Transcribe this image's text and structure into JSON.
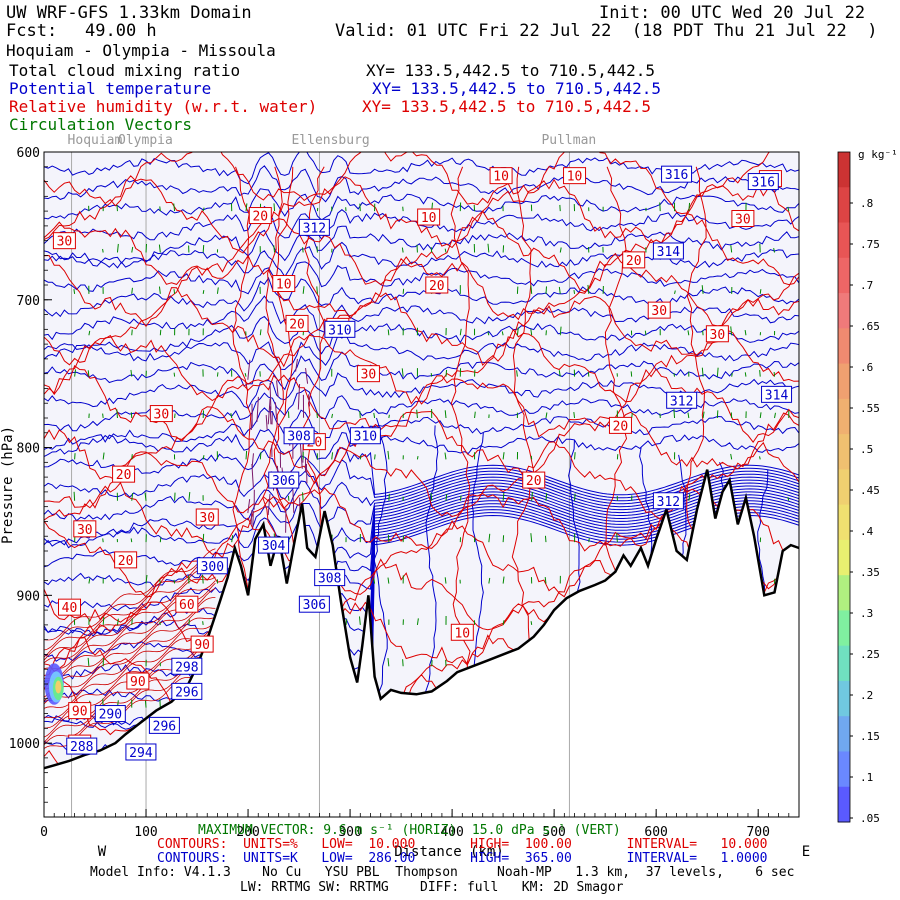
{
  "header": {
    "model": "UW WRF-GFS 1.33km Domain",
    "init": "Init: 00 UTC Wed 20 Jul 22",
    "fcst_label": "Fcst:",
    "fcst_value": "49.00 h",
    "valid": "Valid: 01 UTC Fri 22 Jul 22  (18 PDT Thu 21 Jul 22  )",
    "route": "Hoquiam - Olympia - Missoula",
    "fields": [
      {
        "name": "Total cloud mixing ratio",
        "xy": "XY= 133.5,442.5 to 710.5,442.5",
        "color": "#000000"
      },
      {
        "name": "Potential temperature",
        "xy": "XY= 133.5,442.5 to 710.5,442.5",
        "color": "#0000cc"
      },
      {
        "name": "Relative humidity (w.r.t. water)",
        "xy": "XY= 133.5,442.5 to 710.5,442.5",
        "color": "#dd0000"
      },
      {
        "name": "Circulation Vectors",
        "xy": "",
        "color": "#007700"
      }
    ]
  },
  "chart_data": {
    "type": "cross-section",
    "places": [
      {
        "name": "Hoquiam",
        "km": 27
      },
      {
        "name": "Olympia",
        "km": 100
      },
      {
        "name": "Ellensburg",
        "km": 270
      },
      {
        "name": "Pullman",
        "km": 515
      }
    ],
    "x_ticks": [
      "0",
      "100",
      "200",
      "300",
      "400",
      "500",
      "600",
      "700"
    ],
    "xlim": [
      0,
      740
    ],
    "y_ticks": [
      "600",
      "700",
      "800",
      "900",
      "1000"
    ],
    "ylim": [
      600,
      1050
    ],
    "ylabel": "Pressure (hPa)",
    "xlabel": "Distance (km)",
    "dir_left": "W",
    "dir_right": "E",
    "terrain": [
      {
        "km": 0,
        "p": 1017
      },
      {
        "km": 10,
        "p": 1015
      },
      {
        "km": 25,
        "p": 1012
      },
      {
        "km": 40,
        "p": 1008
      },
      {
        "km": 55,
        "p": 1005
      },
      {
        "km": 70,
        "p": 1000
      },
      {
        "km": 80,
        "p": 994
      },
      {
        "km": 95,
        "p": 986
      },
      {
        "km": 110,
        "p": 978
      },
      {
        "km": 125,
        "p": 972
      },
      {
        "km": 140,
        "p": 962
      },
      {
        "km": 150,
        "p": 948
      },
      {
        "km": 160,
        "p": 930
      },
      {
        "km": 172,
        "p": 905
      },
      {
        "km": 180,
        "p": 888
      },
      {
        "km": 187,
        "p": 868
      },
      {
        "km": 193,
        "p": 880
      },
      {
        "km": 200,
        "p": 900
      },
      {
        "km": 207,
        "p": 862
      },
      {
        "km": 215,
        "p": 852
      },
      {
        "km": 222,
        "p": 880
      },
      {
        "km": 230,
        "p": 860
      },
      {
        "km": 238,
        "p": 892
      },
      {
        "km": 246,
        "p": 862
      },
      {
        "km": 253,
        "p": 838
      },
      {
        "km": 258,
        "p": 868
      },
      {
        "km": 266,
        "p": 874
      },
      {
        "km": 275,
        "p": 843
      },
      {
        "km": 283,
        "p": 866
      },
      {
        "km": 291,
        "p": 904
      },
      {
        "km": 300,
        "p": 942
      },
      {
        "km": 307,
        "p": 959
      },
      {
        "km": 312,
        "p": 934
      },
      {
        "km": 318,
        "p": 900
      },
      {
        "km": 324,
        "p": 955
      },
      {
        "km": 330,
        "p": 970
      },
      {
        "km": 340,
        "p": 964
      },
      {
        "km": 350,
        "p": 966
      },
      {
        "km": 365,
        "p": 967
      },
      {
        "km": 380,
        "p": 965
      },
      {
        "km": 395,
        "p": 958
      },
      {
        "km": 405,
        "p": 952
      },
      {
        "km": 420,
        "p": 948
      },
      {
        "km": 435,
        "p": 944
      },
      {
        "km": 450,
        "p": 940
      },
      {
        "km": 465,
        "p": 936
      },
      {
        "km": 480,
        "p": 928
      },
      {
        "km": 490,
        "p": 920
      },
      {
        "km": 500,
        "p": 910
      },
      {
        "km": 512,
        "p": 902
      },
      {
        "km": 525,
        "p": 897
      },
      {
        "km": 540,
        "p": 893
      },
      {
        "km": 550,
        "p": 890
      },
      {
        "km": 560,
        "p": 884
      },
      {
        "km": 568,
        "p": 873
      },
      {
        "km": 575,
        "p": 880
      },
      {
        "km": 585,
        "p": 868
      },
      {
        "km": 592,
        "p": 880
      },
      {
        "km": 600,
        "p": 862
      },
      {
        "km": 610,
        "p": 842
      },
      {
        "km": 620,
        "p": 870
      },
      {
        "km": 630,
        "p": 876
      },
      {
        "km": 640,
        "p": 842
      },
      {
        "km": 650,
        "p": 815
      },
      {
        "km": 658,
        "p": 848
      },
      {
        "km": 665,
        "p": 830
      },
      {
        "km": 672,
        "p": 822
      },
      {
        "km": 680,
        "p": 852
      },
      {
        "km": 688,
        "p": 834
      },
      {
        "km": 696,
        "p": 860
      },
      {
        "km": 706,
        "p": 900
      },
      {
        "km": 716,
        "p": 898
      },
      {
        "km": 724,
        "p": 870
      },
      {
        "km": 732,
        "p": 866
      },
      {
        "km": 740,
        "p": 868
      }
    ],
    "theta_labels": [
      {
        "text": "288",
        "km": 37,
        "p": 1002
      },
      {
        "text": "290",
        "km": 65,
        "p": 980
      },
      {
        "text": "294",
        "km": 95,
        "p": 1006
      },
      {
        "text": "296",
        "km": 118,
        "p": 988
      },
      {
        "text": "296",
        "km": 140,
        "p": 965
      },
      {
        "text": "298",
        "km": 140,
        "p": 948
      },
      {
        "text": "300",
        "km": 165,
        "p": 880
      },
      {
        "text": "304",
        "km": 225,
        "p": 866
      },
      {
        "text": "306",
        "km": 235,
        "p": 822
      },
      {
        "text": "308",
        "km": 250,
        "p": 792
      },
      {
        "text": "308",
        "km": 280,
        "p": 888
      },
      {
        "text": "306",
        "km": 265,
        "p": 906
      },
      {
        "text": "310",
        "km": 315,
        "p": 792
      },
      {
        "text": "310",
        "km": 290,
        "p": 720
      },
      {
        "text": "312",
        "km": 265,
        "p": 651
      },
      {
        "text": "312",
        "km": 625,
        "p": 768
      },
      {
        "text": "312",
        "km": 612,
        "p": 836
      },
      {
        "text": "314",
        "km": 612,
        "p": 667
      },
      {
        "text": "314",
        "km": 718,
        "p": 764
      },
      {
        "text": "316",
        "km": 705,
        "p": 620
      },
      {
        "text": "316",
        "km": 620,
        "p": 615
      }
    ],
    "rh_labels": [
      {
        "text": "30",
        "km": 20,
        "p": 660
      },
      {
        "text": "20",
        "km": 212,
        "p": 643
      },
      {
        "text": "10",
        "km": 235,
        "p": 689
      },
      {
        "text": "20",
        "km": 248,
        "p": 716
      },
      {
        "text": "30",
        "km": 288,
        "p": 718
      },
      {
        "text": "30",
        "km": 318,
        "p": 750
      },
      {
        "text": "10",
        "km": 377,
        "p": 644
      },
      {
        "text": "20",
        "km": 385,
        "p": 690
      },
      {
        "text": "10",
        "km": 448,
        "p": 616
      },
      {
        "text": "10",
        "km": 520,
        "p": 616
      },
      {
        "text": "20",
        "km": 578,
        "p": 673
      },
      {
        "text": "30",
        "km": 603,
        "p": 707
      },
      {
        "text": "30",
        "km": 660,
        "p": 723
      },
      {
        "text": "30",
        "km": 685,
        "p": 645
      },
      {
        "text": "30",
        "km": 712,
        "p": 618
      },
      {
        "text": "20",
        "km": 565,
        "p": 785
      },
      {
        "text": "20",
        "km": 480,
        "p": 822
      },
      {
        "text": "30",
        "km": 115,
        "p": 777
      },
      {
        "text": "20",
        "km": 78,
        "p": 818
      },
      {
        "text": "30",
        "km": 40,
        "p": 855
      },
      {
        "text": "30",
        "km": 160,
        "p": 847
      },
      {
        "text": "20",
        "km": 80,
        "p": 876
      },
      {
        "text": "40",
        "km": 25,
        "p": 908
      },
      {
        "text": "60",
        "km": 140,
        "p": 906
      },
      {
        "text": "90",
        "km": 155,
        "p": 933
      },
      {
        "text": "90",
        "km": 92,
        "p": 958
      },
      {
        "text": "90",
        "km": 35,
        "p": 978
      },
      {
        "text": "90",
        "km": 35,
        "p": 1000
      },
      {
        "text": "10",
        "km": 410,
        "p": 925
      },
      {
        "text": "20",
        "km": 265,
        "p": 796
      }
    ],
    "colorbar": {
      "unit": "g kg⁻¹",
      "ticks": [
        ".8",
        ".75",
        ".7",
        ".65",
        ".6",
        ".55",
        ".5",
        ".45",
        ".4",
        ".35",
        ".3",
        ".25",
        ".2",
        ".15",
        ".1",
        ".05"
      ],
      "top_color": "#cc3333",
      "bottom_color": "#5a5aff"
    }
  },
  "footer": {
    "max_vector": "MAXIMUM VECTOR: 9.6 m s⁻¹ (HORIZ)  15.0 dPa s⁻¹ (VERT)",
    "rh_contours": "CONTOURS:  UNITS=%   LOW=  10.000       HIGH=  100.00       INTERVAL=   10.000",
    "theta_contours": "CONTOURS:  UNITS=K   LOW=  286.00       HIGH=  365.00       INTERVAL=   1.0000",
    "model_info": "Model Info: V4.1.3    No Cu   YSU PBL  Thompson     Noah-MP   1.3 km,  37 levels,    6 sec",
    "physics": "LW: RRTMG SW: RRTMG    DIFF: full   KM: 2D Smagor"
  }
}
